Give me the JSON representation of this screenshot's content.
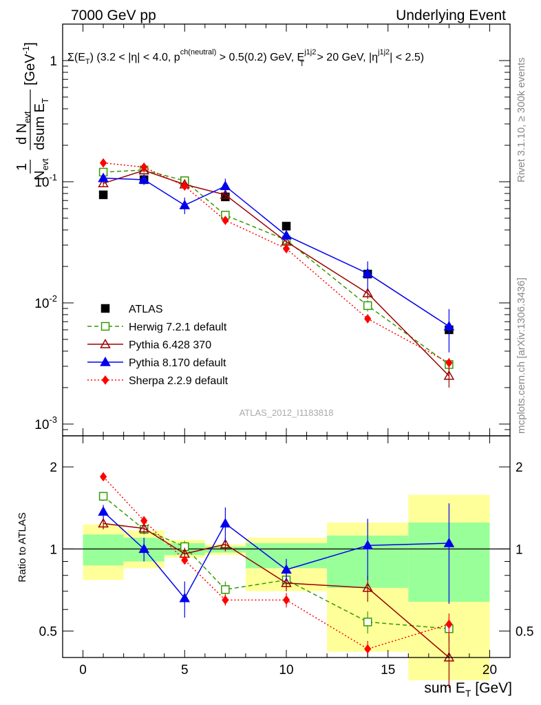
{
  "header": {
    "left": "7000 GeV pp",
    "right": "Underlying Event"
  },
  "side": {
    "rivet": "Rivet 3.1.10, ≥ 300k events",
    "mcplots": "mcplots.cern.ch [arXiv:1306.3436]"
  },
  "chart_data": [
    {
      "type": "scatter",
      "title": "Σ(E_T) (3.2 < |η| < 4.0, p_T^ch(neutral) > 0.5(0.2) GeV, E_T^j1j2 > 20 GeV, |η^j1j2| < 2.5)",
      "title_parts": {
        "main": "Σ(E",
        "sub_t": "T",
        "mid1": ") (3.2 < |η| < 4.0, p",
        "sup_ch": "ch(neutral)",
        "mid2": " > 0.5(0.2) GeV, E",
        "sup_j": "j1j2",
        "sub_t2": "T",
        "mid3": " > 20 GeV, |η",
        "sup_eta": "j1j2",
        "end": "| < 2.5)"
      },
      "ylabel": "1/N_evt dN_evt/dsum E_T [GeV^-1]",
      "ylabel_parts": {
        "one": "1",
        "d": "d N",
        "evt": "evt",
        "nevt": "N",
        "dsum": "dsum E",
        "t": "T",
        "unit": "[GeV",
        "unit_exp": "-1",
        "unit_end": "]"
      },
      "yscale": "log",
      "ylim": [
        0.0008,
        2.0
      ],
      "xlim": [
        -1,
        21
      ],
      "yticks": [
        {
          "base": "10",
          "exp": "-3",
          "value": 0.001
        },
        {
          "base": "10",
          "exp": "-2",
          "value": 0.01
        },
        {
          "base": "10",
          "exp": "-1",
          "value": 0.1
        },
        {
          "base": "1",
          "exp": "",
          "value": 1
        }
      ],
      "watermark": "ATLAS_2012_I1183818",
      "legend_position": "lower-left",
      "series": [
        {
          "name": "ATLAS",
          "color": "#000000",
          "marker": "square-filled",
          "line": "none",
          "x": [
            1,
            3,
            5,
            7,
            10,
            14,
            18
          ],
          "y": [
            0.078,
            0.104,
            0.101,
            0.075,
            0.043,
            0.0173,
            0.006
          ],
          "yerr": [
            0.003,
            0.004,
            0.004,
            0.003,
            0.002,
            0.001,
            0.0005
          ]
        },
        {
          "name": "Herwig 7.2.1 default",
          "color": "#339900",
          "marker": "square-open",
          "line": "dashed",
          "x": [
            1,
            3,
            5,
            7,
            10,
            14,
            18
          ],
          "y": [
            0.12,
            0.125,
            0.102,
            0.053,
            0.033,
            0.0095,
            0.0031
          ],
          "yerr": [
            0.005,
            0.005,
            0.004,
            0.003,
            0.002,
            0.001,
            0.0004
          ]
        },
        {
          "name": "Pythia 6.428 370",
          "color": "#990000",
          "marker": "triangle-open",
          "line": "solid",
          "x": [
            1,
            3,
            5,
            7,
            10,
            14,
            18
          ],
          "y": [
            0.097,
            0.124,
            0.095,
            0.078,
            0.032,
            0.012,
            0.0025
          ],
          "yerr": [
            0.005,
            0.005,
            0.005,
            0.005,
            0.002,
            0.0012,
            0.0005
          ]
        },
        {
          "name": "Pythia 8.170 default",
          "color": "#0000ee",
          "marker": "triangle-filled",
          "line": "solid",
          "x": [
            1,
            3,
            5,
            7,
            10,
            14,
            18
          ],
          "y": [
            0.107,
            0.104,
            0.064,
            0.092,
            0.036,
            0.0175,
            0.0064
          ],
          "yerr": [
            0.006,
            0.01,
            0.01,
            0.014,
            0.003,
            0.0045,
            0.0025
          ]
        },
        {
          "name": "Sherpa 2.2.9 default",
          "color": "#ff0000",
          "marker": "diamond-filled",
          "line": "dotted",
          "x": [
            1,
            3,
            5,
            7,
            10,
            14,
            18
          ],
          "y": [
            0.143,
            0.132,
            0.092,
            0.048,
            0.028,
            0.0074,
            0.0032
          ],
          "yerr": [
            0.004,
            0.004,
            0.003,
            0.002,
            0.002,
            0.0006,
            0.0003
          ]
        }
      ]
    },
    {
      "type": "scatter",
      "title": "",
      "xlabel": "sum E_T [GeV]",
      "xlabel_parts": {
        "main": "sum E",
        "sub": "T",
        "unit": " [GeV]"
      },
      "ylabel": "Ratio to ATLAS",
      "yscale": "log",
      "ylim": [
        0.4,
        2.6
      ],
      "xlim": [
        -1,
        21
      ],
      "xticks": [
        "0",
        "5",
        "10",
        "15",
        "20"
      ],
      "xtick_values": [
        0,
        5,
        10,
        15,
        20
      ],
      "yticks": [
        "0.5",
        "1",
        "2"
      ],
      "ytick_values": [
        0.5,
        1,
        2
      ],
      "reference_line": 1,
      "bands": [
        {
          "x0": 0,
          "x1": 2,
          "inner": [
            0.87,
            1.13
          ],
          "outer": [
            0.77,
            1.23
          ]
        },
        {
          "x0": 2,
          "x1": 4,
          "inner": [
            0.9,
            1.1
          ],
          "outer": [
            0.85,
            1.17
          ]
        },
        {
          "x0": 4,
          "x1": 6,
          "inner": [
            0.95,
            1.05
          ],
          "outer": [
            0.93,
            1.08
          ]
        },
        {
          "x0": 6,
          "x1": 8,
          "inner": [
            0.97,
            1.02
          ],
          "outer": [
            0.95,
            1.04
          ]
        },
        {
          "x0": 8,
          "x1": 12,
          "inner": [
            0.85,
            1.05
          ],
          "outer": [
            0.7,
            1.1
          ]
        },
        {
          "x0": 12,
          "x1": 16,
          "inner": [
            0.72,
            1.12
          ],
          "outer": [
            0.42,
            1.25
          ]
        },
        {
          "x0": 16,
          "x1": 20,
          "inner": [
            0.64,
            1.25
          ],
          "outer": [
            0.33,
            1.58
          ]
        }
      ],
      "series": [
        {
          "name": "Herwig 7.2.1 default",
          "color": "#339900",
          "marker": "square-open",
          "line": "dashed",
          "x": [
            1,
            3,
            5,
            7,
            10,
            14,
            18
          ],
          "y": [
            1.56,
            1.18,
            1.02,
            0.71,
            0.77,
            0.54,
            0.51
          ],
          "yerr": [
            0.06,
            0.05,
            0.05,
            0.05,
            0.05,
            0.05,
            0.05
          ]
        },
        {
          "name": "Pythia 6.428 370",
          "color": "#990000",
          "marker": "triangle-open",
          "line": "solid",
          "x": [
            1,
            3,
            5,
            7,
            10,
            14,
            18
          ],
          "y": [
            1.24,
            1.19,
            0.96,
            1.04,
            0.75,
            0.72,
            0.4
          ],
          "yerr": [
            0.06,
            0.05,
            0.05,
            0.06,
            0.05,
            0.08,
            0.09
          ]
        },
        {
          "name": "Pythia 8.170 default",
          "color": "#0000ee",
          "marker": "triangle-filled",
          "line": "solid",
          "x": [
            1,
            3,
            5,
            7,
            10,
            14,
            18
          ],
          "y": [
            1.37,
            1.0,
            0.66,
            1.24,
            0.84,
            1.03,
            1.05
          ],
          "yerr": [
            0.08,
            0.1,
            0.1,
            0.18,
            0.08,
            0.26,
            0.42
          ]
        },
        {
          "name": "Sherpa 2.2.9 default",
          "color": "#ff0000",
          "marker": "diamond-filled",
          "line": "dotted",
          "x": [
            1,
            3,
            5,
            7,
            10,
            14,
            18
          ],
          "y": [
            1.84,
            1.27,
            0.91,
            0.65,
            0.65,
            0.43,
            0.53
          ],
          "yerr": [
            0.04,
            0.04,
            0.03,
            0.03,
            0.04,
            0.03,
            0.05
          ]
        }
      ]
    }
  ]
}
